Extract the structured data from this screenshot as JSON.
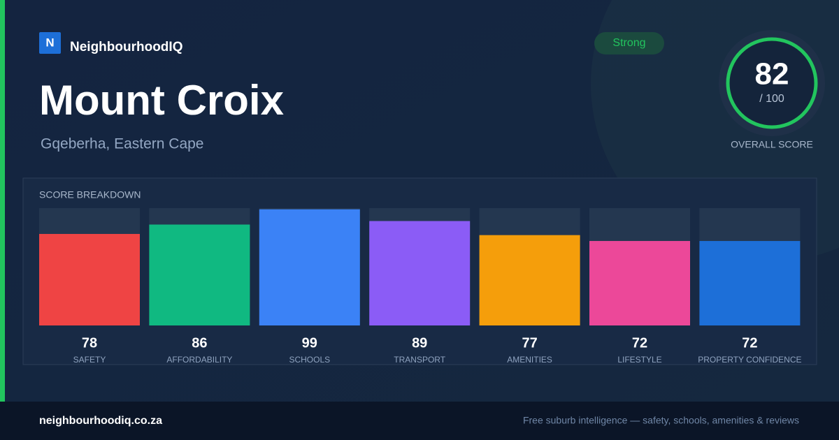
{
  "brand": {
    "logo": "N",
    "name": "NeighbourhoodIQ"
  },
  "title": "Mount Croix",
  "subtitle": "Gqeberha, Eastern Cape",
  "badge": "Strong",
  "overall": {
    "score": 82,
    "max": "/ 100",
    "label": "OVERALL SCORE"
  },
  "chart_data": {
    "type": "bar",
    "title": "SCORE BREAKDOWN",
    "categories": [
      "SAFETY",
      "AFFORDABILITY",
      "SCHOOLS",
      "TRANSPORT",
      "AMENITIES",
      "LIFESTYLE",
      "PROPERTY CONFIDENCE"
    ],
    "values": [
      78,
      86,
      99,
      89,
      77,
      72,
      72
    ],
    "colors": [
      "#ef4444",
      "#10b981",
      "#3b82f6",
      "#8b5cf6",
      "#f59e0b",
      "#ec4899",
      "#1d6fd8"
    ],
    "ylim": [
      0,
      100
    ]
  },
  "footer": {
    "url": "neighbourhoodiq.co.za",
    "tagline": "Free suburb intelligence — safety, schools, amenities & reviews"
  }
}
